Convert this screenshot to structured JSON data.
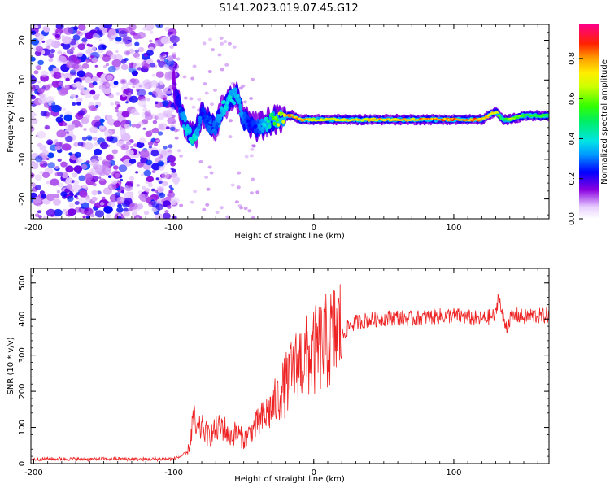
{
  "title": "S141.2023.019.07.45.G12",
  "colors": {
    "snr_line": "#ee2222",
    "axis": "#000000"
  },
  "chart_data": [
    {
      "type": "heatmap",
      "title": "S141.2023.019.07.45.G12",
      "xlabel": "Height of straight line (km)",
      "ylabel": "Frequency (Hz)",
      "xlim": [
        -202,
        168
      ],
      "ylim": [
        -25,
        24
      ],
      "xticks": [
        -200,
        -100,
        0,
        100
      ],
      "yticks": [
        -20,
        -10,
        0,
        10,
        20
      ],
      "colorbar": {
        "label": "Normalized spectral amplitude",
        "range": [
          0,
          0.97
        ],
        "ticks": [
          0.0,
          0.2,
          0.4,
          0.6,
          0.8
        ],
        "tick_labels": [
          "0.0",
          "0.2",
          "0.4",
          "0.6",
          "0.8"
        ],
        "colormap": "rainbow (white-purple-blue-cyan-green-yellow-orange-red-magenta)"
      },
      "ridge": {
        "description": "dominant frequency track",
        "x": [
          -100,
          -95,
          -90,
          -85,
          -80,
          -75,
          -70,
          -65,
          -60,
          -55,
          -50,
          -45,
          -40,
          -35,
          -30,
          -25,
          -20,
          -15,
          -10,
          -5,
          0,
          20,
          40,
          60,
          80,
          100,
          120,
          130,
          135,
          140,
          150,
          168
        ],
        "frequency": [
          9,
          2,
          -3,
          -5,
          2,
          -1,
          -2,
          3,
          5,
          6,
          0,
          -1,
          -2,
          -1,
          0,
          0,
          1,
          1,
          0,
          0,
          0,
          0,
          0,
          0,
          0,
          0,
          0,
          2,
          0,
          0,
          1,
          1
        ],
        "amplitude": [
          0.15,
          0.3,
          0.45,
          0.5,
          0.25,
          0.3,
          0.3,
          0.4,
          0.45,
          0.4,
          0.3,
          0.25,
          0.3,
          0.4,
          0.55,
          0.7,
          0.8,
          0.85,
          0.85,
          0.8,
          0.75,
          0.78,
          0.8,
          0.82,
          0.85,
          0.88,
          0.85,
          0.75,
          0.5,
          0.7,
          0.6,
          0.55
        ]
      }
    },
    {
      "type": "line",
      "xlabel": "Height of straight line (km)",
      "ylabel": "SNR (10 * v/v)",
      "xlim": [
        -202,
        168
      ],
      "ylim": [
        0,
        540
      ],
      "xticks": [
        -200,
        -100,
        0,
        100
      ],
      "yticks": [
        0,
        100,
        200,
        300,
        400,
        500
      ],
      "series": [
        {
          "name": "SNR",
          "x": [
            -202,
            -180,
            -160,
            -140,
            -120,
            -100,
            -95,
            -90,
            -88,
            -86,
            -84,
            -80,
            -75,
            -70,
            -65,
            -60,
            -55,
            -50,
            -45,
            -40,
            -35,
            -30,
            -25,
            -20,
            -15,
            -10,
            -5,
            0,
            5,
            10,
            15,
            20,
            25,
            30,
            35,
            40,
            45,
            50,
            60,
            70,
            80,
            90,
            100,
            110,
            120,
            125,
            130,
            132,
            134,
            136,
            138,
            140,
            145,
            150,
            155,
            160,
            168
          ],
          "values": [
            12,
            13,
            12,
            13,
            12,
            13,
            20,
            30,
            60,
            120,
            80,
            90,
            70,
            85,
            95,
            70,
            80,
            60,
            80,
            100,
            120,
            140,
            170,
            200,
            230,
            260,
            270,
            280,
            300,
            310,
            330,
            350,
            380,
            390,
            395,
            398,
            400,
            402,
            405,
            400,
            405,
            408,
            410,
            405,
            400,
            405,
            410,
            470,
            420,
            390,
            380,
            400,
            410,
            405,
            410,
            408,
            410
          ]
        }
      ]
    }
  ]
}
